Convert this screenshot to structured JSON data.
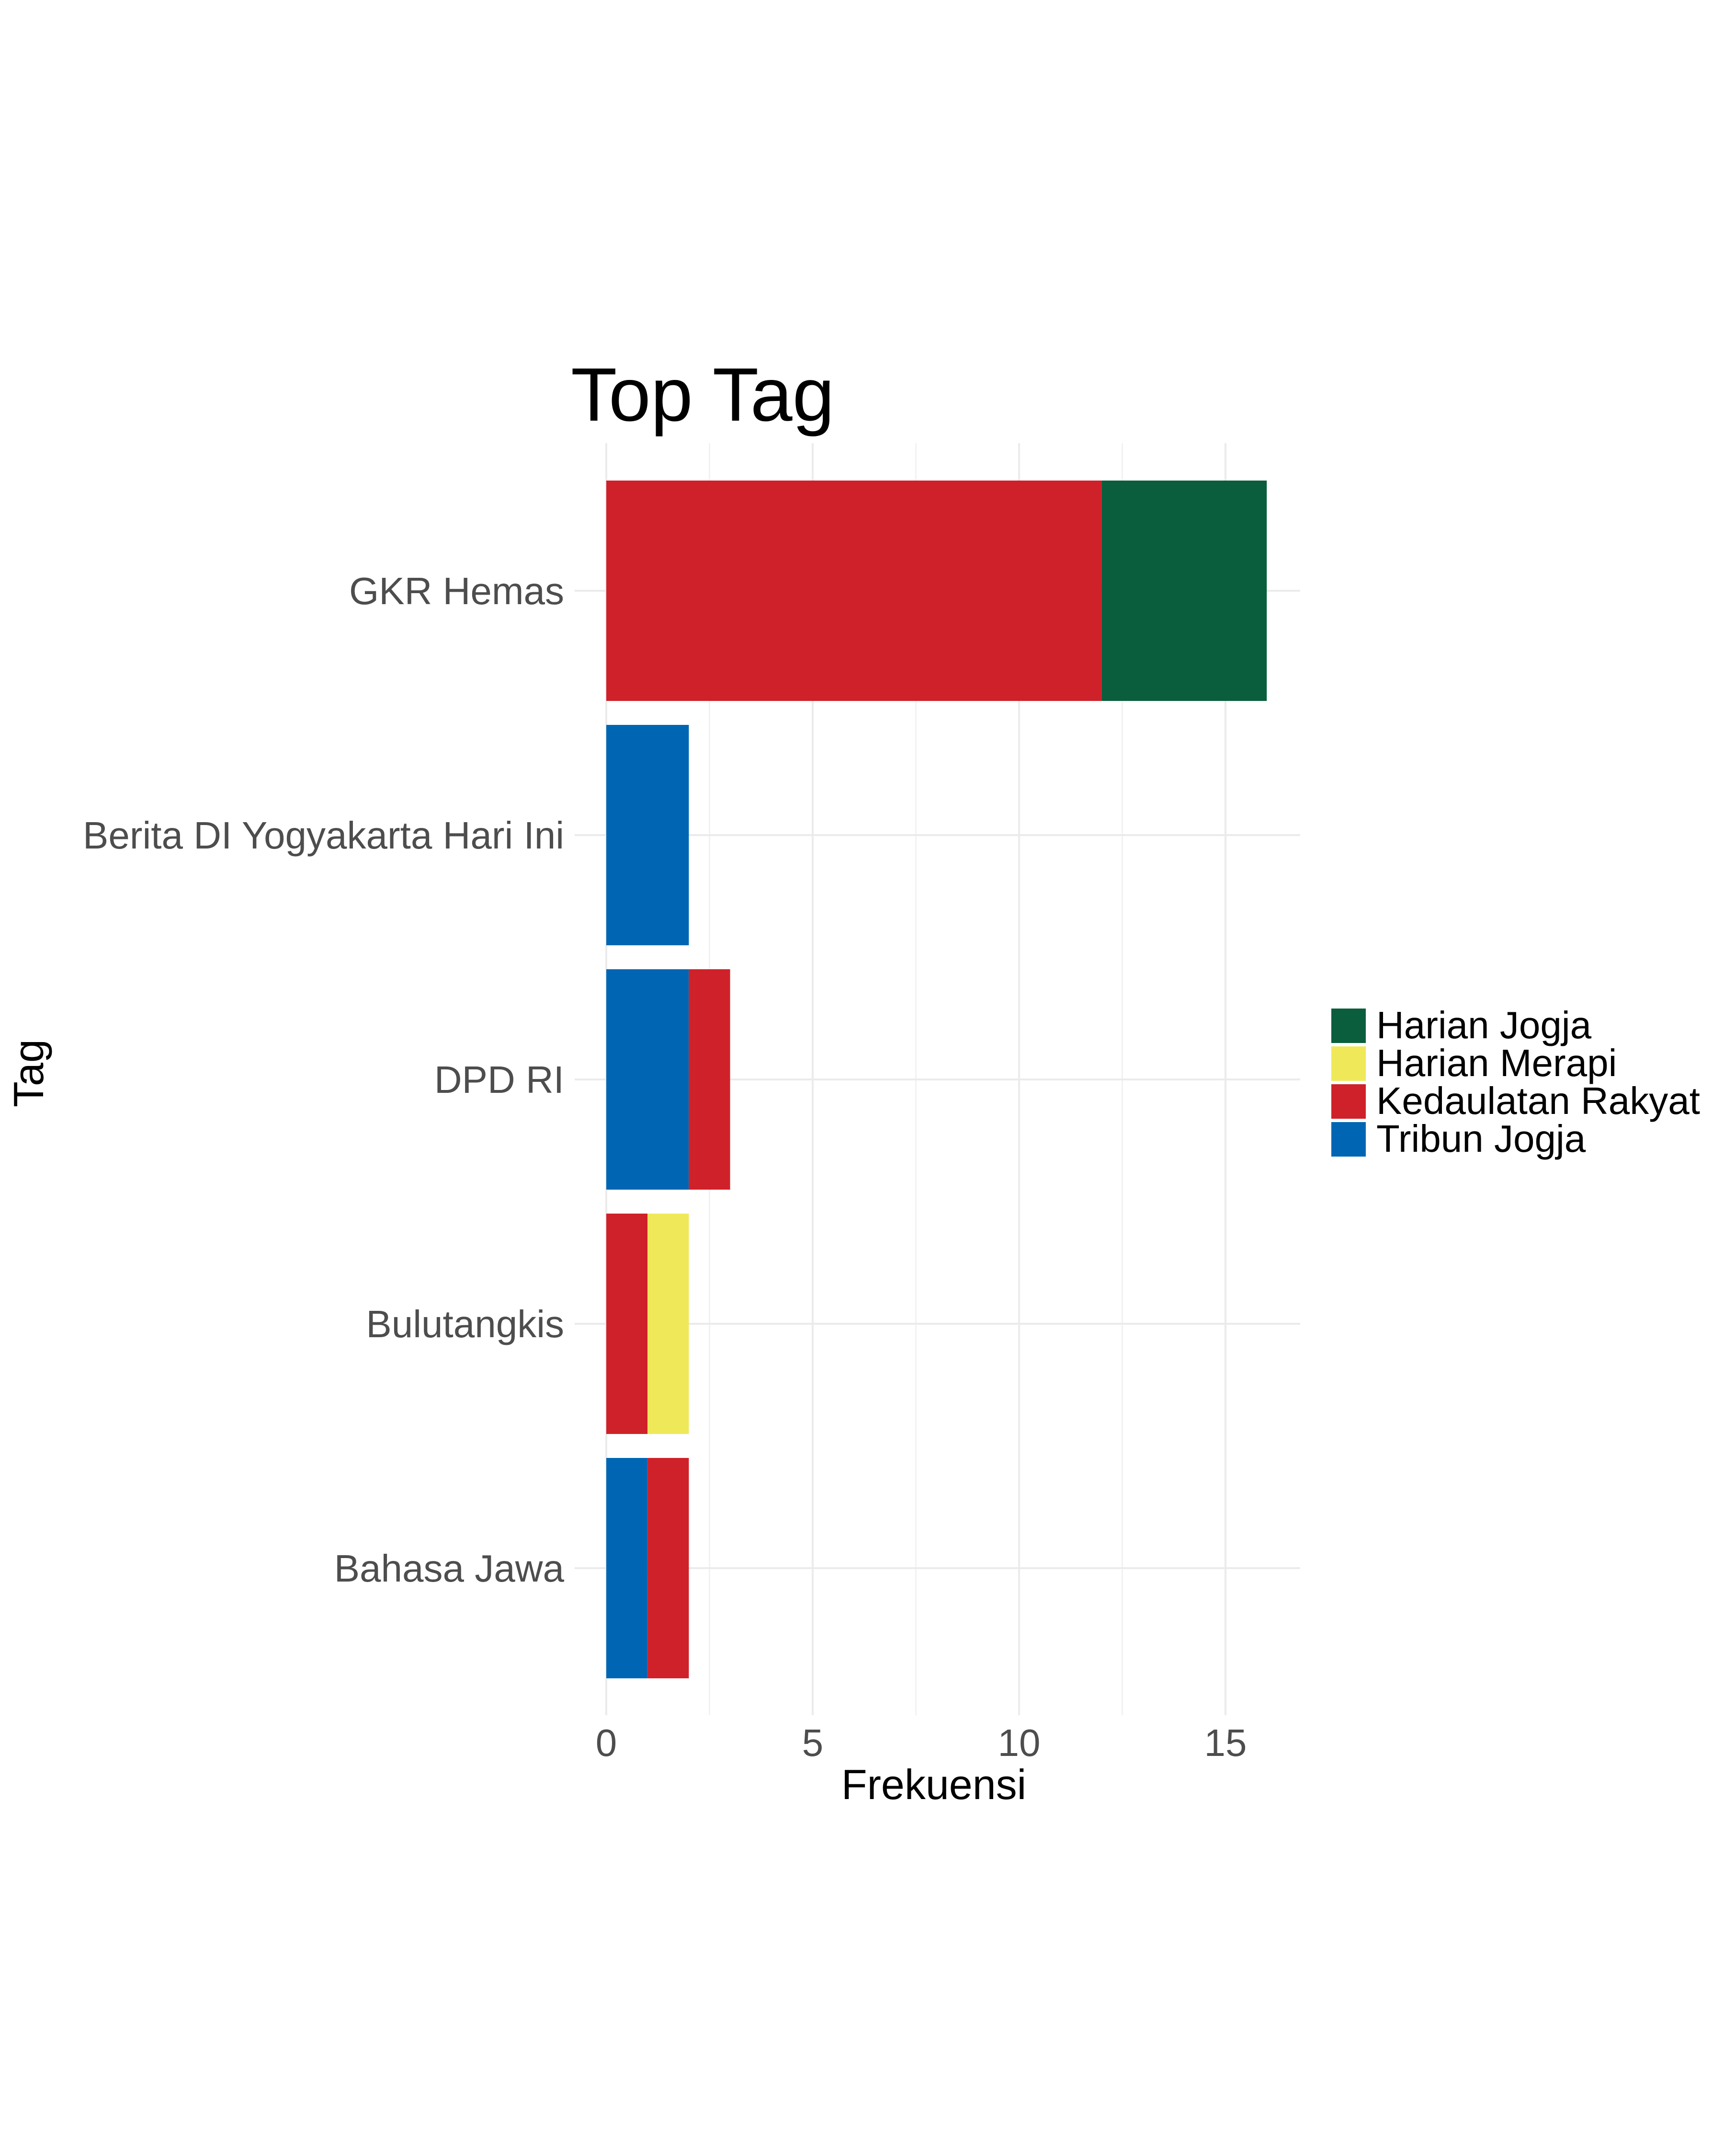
{
  "chart_data": {
    "type": "bar",
    "orientation": "horizontal",
    "stacked": true,
    "title": "Top Tag",
    "xlabel": "Frekuensi",
    "ylabel": "Tag",
    "xlim": [
      0,
      16.8
    ],
    "xticks": [
      0,
      5,
      10,
      15
    ],
    "grid": true,
    "legend_position": "right",
    "categories": [
      "GKR Hemas",
      "Berita DI Yogyakarta Hari Ini",
      "DPD RI",
      "Bulutangkis",
      "Bahasa Jawa"
    ],
    "series": [
      {
        "name": "Harian Jogja",
        "color": "#0a5e3e",
        "values": [
          4,
          0,
          0,
          0,
          0
        ]
      },
      {
        "name": "Harian Merapi",
        "color": "#efe95a",
        "values": [
          0,
          0,
          0,
          1,
          0
        ]
      },
      {
        "name": "Kedaulatan Rakyat",
        "color": "#cf2129",
        "values": [
          12,
          0,
          1,
          1,
          1
        ]
      },
      {
        "name": "Tribun Jogja",
        "color": "#0066b3",
        "values": [
          0,
          2,
          2,
          0,
          1
        ]
      }
    ],
    "stack_order": [
      "Tribun Jogja",
      "Kedaulatan Rakyat",
      "Harian Merapi",
      "Harian Jogja"
    ]
  }
}
